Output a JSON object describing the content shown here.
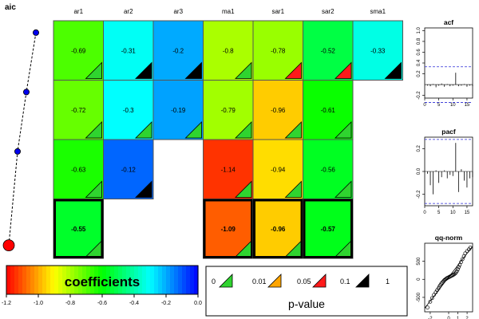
{
  "chart_data": [
    {
      "type": "heatmap",
      "ylabel": "aic",
      "columns": [
        "ar1",
        "ar2",
        "ar3",
        "ma1",
        "sar1",
        "sar2",
        "sma1"
      ],
      "rows": [
        {
          "model": 1,
          "aic_marker": "small-blue",
          "cells": [
            {
              "col": "ar1",
              "value": -0.69,
              "pvalue_class": "0.01-0.05",
              "pvalue_color": "#2fd42f"
            },
            {
              "col": "ar2",
              "value": -0.31,
              "pvalue_class": "0.1-1",
              "pvalue_color": "#000000"
            },
            {
              "col": "ar3",
              "value": -0.2,
              "pvalue_class": "0.1-1",
              "pvalue_color": "#000000"
            },
            {
              "col": "ma1",
              "value": -0.8,
              "pvalue_class": "0-0.01",
              "pvalue_color": "#2fd42f"
            },
            {
              "col": "sar1",
              "value": -0.78,
              "pvalue_class": "0.05-0.1",
              "pvalue_color": "#ff1a1a"
            },
            {
              "col": "sar2",
              "value": -0.52,
              "pvalue_class": "0.05-0.1",
              "pvalue_color": "#ff1a1a"
            },
            {
              "col": "sma1",
              "value": -0.33,
              "pvalue_class": "0.1-1",
              "pvalue_color": "#000000"
            }
          ]
        },
        {
          "model": 2,
          "aic_marker": "small-blue",
          "cells": [
            {
              "col": "ar1",
              "value": -0.72,
              "pvalue_class": "0-0.01",
              "pvalue_color": "#2fd42f"
            },
            {
              "col": "ar2",
              "value": -0.3,
              "pvalue_class": "0-0.01",
              "pvalue_color": "#2fd42f"
            },
            {
              "col": "ar3",
              "value": -0.19,
              "pvalue_class": "0-0.01",
              "pvalue_color": "#2fd42f"
            },
            {
              "col": "ma1",
              "value": -0.79,
              "pvalue_class": "0-0.01",
              "pvalue_color": "#2fd42f"
            },
            {
              "col": "sar1",
              "value": -0.96,
              "pvalue_class": "0-0.01",
              "pvalue_color": "#2fd42f"
            },
            {
              "col": "sar2",
              "value": -0.61,
              "pvalue_class": "0-0.01",
              "pvalue_color": "#2fd42f"
            }
          ]
        },
        {
          "model": 3,
          "aic_marker": "small-blue",
          "cells": [
            {
              "col": "ar1",
              "value": -0.63,
              "pvalue_class": "0-0.01",
              "pvalue_color": "#2fd42f"
            },
            {
              "col": "ar2",
              "value": -0.12,
              "pvalue_class": "0.1-1",
              "pvalue_color": "#000000"
            },
            {
              "col": "ma1",
              "value": -1.14,
              "pvalue_class": "0-0.01",
              "pvalue_color": "#2fd42f"
            },
            {
              "col": "sar1",
              "value": -0.94,
              "pvalue_class": "0-0.01",
              "pvalue_color": "#2fd42f"
            },
            {
              "col": "sar2",
              "value": -0.56,
              "pvalue_class": "0-0.01",
              "pvalue_color": "#2fd42f"
            }
          ]
        },
        {
          "model": 4,
          "aic_marker": "large-red",
          "selected": true,
          "cells": [
            {
              "col": "ar1",
              "value": -0.55,
              "pvalue_class": "0-0.01",
              "pvalue_color": "#2fd42f"
            },
            {
              "col": "ma1",
              "value": -1.09,
              "pvalue_class": "0-0.01",
              "pvalue_color": "#2fd42f"
            },
            {
              "col": "sar1",
              "value": -0.96,
              "pvalue_class": "0-0.01",
              "pvalue_color": "#2fd42f"
            },
            {
              "col": "sar2",
              "value": -0.57,
              "pvalue_class": "0-0.01",
              "pvalue_color": "#2fd42f"
            }
          ]
        }
      ],
      "colorbar": {
        "label": "coefficients",
        "ticks": [
          "-1.2",
          "-1.0",
          "-0.8",
          "-0.6",
          "-0.4",
          "-0.2",
          "0.0"
        ],
        "range": [
          -1.2,
          0.0
        ],
        "colors": [
          "#ff0000",
          "#ffff00",
          "#00ff00",
          "#00ffff",
          "#0000ff"
        ]
      },
      "pvalue_legend": {
        "title": "p-value",
        "breaks": [
          "0",
          "0.01",
          "0.05",
          "0.1",
          "1"
        ],
        "colors": [
          "#2fd42f",
          "#ffa500",
          "#ff1a1a",
          "#000000"
        ]
      }
    },
    {
      "type": "bar",
      "title": "acf",
      "lags": [
        1,
        2,
        3,
        4,
        5,
        6,
        7,
        8,
        9,
        10,
        11,
        12,
        13,
        14,
        15,
        16,
        17
      ],
      "values": [
        -0.02,
        -0.03,
        0.01,
        -0.05,
        -0.02,
        0.02,
        -0.04,
        0.01,
        -0.03,
        -0.02,
        0.22,
        -0.03,
        -0.02,
        0.01,
        -0.04,
        -0.02,
        -0.03
      ],
      "ci": 0.33,
      "ylim": [
        -0.25,
        1.05
      ],
      "xlim": [
        0,
        17
      ],
      "yticks": [
        "-0.2",
        "0.2",
        "0.4",
        "0.6",
        "0.8",
        "1.0"
      ],
      "xticks": [
        "0",
        "5",
        "10",
        "15"
      ]
    },
    {
      "type": "bar",
      "title": "pacf",
      "lags": [
        1,
        2,
        3,
        4,
        5,
        6,
        7,
        8,
        9,
        10,
        11,
        12,
        13,
        14,
        15,
        16,
        17
      ],
      "values": [
        -0.02,
        -0.12,
        -0.2,
        0.01,
        -0.1,
        -0.05,
        0.01,
        -0.06,
        -0.03,
        -0.04,
        0.25,
        -0.18,
        0.02,
        -0.08,
        -0.14,
        -0.06,
        -0.05
      ],
      "ci": 0.28,
      "ylim": [
        -0.3,
        0.3
      ],
      "xlim": [
        0,
        17
      ],
      "yticks": [
        "-0.2",
        "0.0",
        "0.2"
      ],
      "xticks": [
        "0",
        "5",
        "10",
        "15"
      ]
    },
    {
      "type": "scatter",
      "title": "qq-norm",
      "xlim": [
        -2.6,
        2.6
      ],
      "ylim": [
        -900,
        1000
      ],
      "xticks": [
        "-2",
        "0",
        "1",
        "2"
      ],
      "yticks": [
        "-500",
        "0",
        "500"
      ],
      "points": [
        [
          -2.3,
          -780
        ],
        [
          -2.0,
          -620
        ],
        [
          -1.8,
          -520
        ],
        [
          -1.6,
          -430
        ],
        [
          -1.4,
          -360
        ],
        [
          -1.25,
          -300
        ],
        [
          -1.1,
          -250
        ],
        [
          -1.0,
          -200
        ],
        [
          -0.9,
          -160
        ],
        [
          -0.8,
          -120
        ],
        [
          -0.7,
          -90
        ],
        [
          -0.6,
          -60
        ],
        [
          -0.5,
          -30
        ],
        [
          -0.4,
          -10
        ],
        [
          -0.3,
          10
        ],
        [
          -0.2,
          30
        ],
        [
          -0.1,
          45
        ],
        [
          0.0,
          55
        ],
        [
          0.1,
          70
        ],
        [
          0.2,
          85
        ],
        [
          0.3,
          100
        ],
        [
          0.4,
          110
        ],
        [
          0.5,
          125
        ],
        [
          0.6,
          140
        ],
        [
          0.7,
          160
        ],
        [
          0.8,
          190
        ],
        [
          0.9,
          230
        ],
        [
          1.0,
          280
        ],
        [
          1.1,
          340
        ],
        [
          1.2,
          400
        ],
        [
          1.35,
          480
        ],
        [
          1.5,
          560
        ],
        [
          1.65,
          640
        ],
        [
          1.8,
          720
        ],
        [
          2.0,
          780
        ],
        [
          2.2,
          830
        ],
        [
          2.35,
          880
        ]
      ],
      "ref_line": {
        "intercept": 60,
        "slope": 330
      }
    }
  ]
}
